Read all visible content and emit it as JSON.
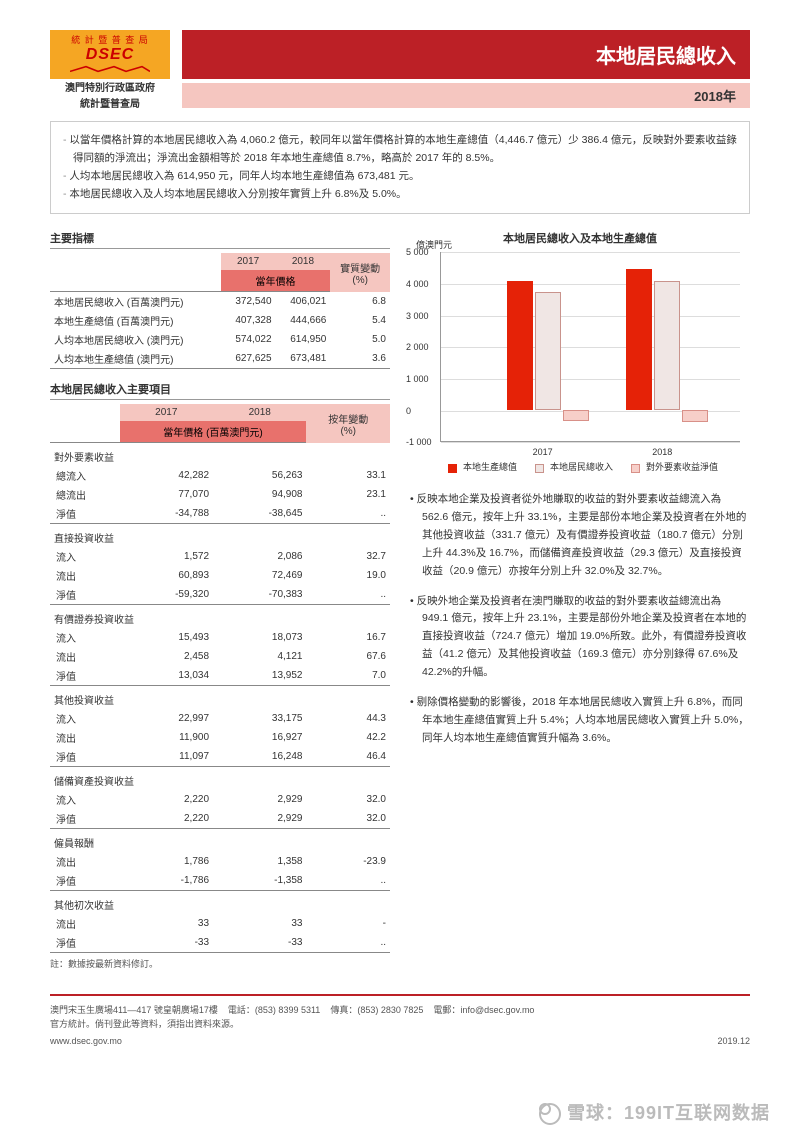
{
  "logo": {
    "top": "統 計 暨 普 查 局",
    "dsec": "DSEC",
    "gov": "澳門特別行政區政府",
    "bureau": "統計暨普查局"
  },
  "title": "本地居民總收入",
  "year": "2018年",
  "summary": [
    "以當年價格計算的本地居民總收入為 4,060.2 億元，較同年以當年價格計算的本地生產總值（4,446.7 億元）少 386.4 億元，反映對外要素收益錄得同額的淨流出；淨流出金額相等於 2018 年本地生產總值 8.7%，略高於 2017 年的 8.5%。",
    "人均本地居民總收入為 614,950 元，同年人均本地生產總值為 673,481 元。",
    "本地居民總收入及人均本地居民總收入分別按年實質上升 6.8%及 5.0%。"
  ],
  "table1": {
    "title": "主要指標",
    "head": {
      "y2017": "2017",
      "y2018": "2018",
      "sub": "當年價格",
      "pct": "實質變動\n(%)"
    },
    "rows": [
      {
        "label": "本地居民總收入 (百萬澳門元)",
        "v17": "372,540",
        "v18": "406,021",
        "pct": "6.8"
      },
      {
        "label": "本地生產總值 (百萬澳門元)",
        "v17": "407,328",
        "v18": "444,666",
        "pct": "5.4"
      },
      {
        "label": "人均本地居民總收入 (澳門元)",
        "v17": "574,022",
        "v18": "614,950",
        "pct": "5.0"
      },
      {
        "label": "人均本地生產總值 (澳門元)",
        "v17": "627,625",
        "v18": "673,481",
        "pct": "3.6"
      }
    ]
  },
  "table2": {
    "title": "本地居民總收入主要項目",
    "head": {
      "y2017": "2017",
      "y2018": "2018",
      "sub": "當年價格 (百萬澳門元)",
      "pct": "按年變動\n(%)"
    },
    "groups": [
      {
        "name": "對外要素收益",
        "rows": [
          {
            "label": "總流入",
            "v17": "42,282",
            "v18": "56,263",
            "pct": "33.1"
          },
          {
            "label": "總流出",
            "v17": "77,070",
            "v18": "94,908",
            "pct": "23.1"
          },
          {
            "label": "淨值",
            "v17": "-34,788",
            "v18": "-38,645",
            "pct": ".."
          }
        ]
      },
      {
        "name": "直接投資收益",
        "rows": [
          {
            "label": "流入",
            "v17": "1,572",
            "v18": "2,086",
            "pct": "32.7"
          },
          {
            "label": "流出",
            "v17": "60,893",
            "v18": "72,469",
            "pct": "19.0"
          },
          {
            "label": "淨值",
            "v17": "-59,320",
            "v18": "-70,383",
            "pct": ".."
          }
        ]
      },
      {
        "name": "有價證券投資收益",
        "rows": [
          {
            "label": "流入",
            "v17": "15,493",
            "v18": "18,073",
            "pct": "16.7"
          },
          {
            "label": "流出",
            "v17": "2,458",
            "v18": "4,121",
            "pct": "67.6"
          },
          {
            "label": "淨值",
            "v17": "13,034",
            "v18": "13,952",
            "pct": "7.0"
          }
        ]
      },
      {
        "name": "其他投資收益",
        "rows": [
          {
            "label": "流入",
            "v17": "22,997",
            "v18": "33,175",
            "pct": "44.3"
          },
          {
            "label": "流出",
            "v17": "11,900",
            "v18": "16,927",
            "pct": "42.2"
          },
          {
            "label": "淨值",
            "v17": "11,097",
            "v18": "16,248",
            "pct": "46.4"
          }
        ]
      },
      {
        "name": "儲備資產投資收益",
        "rows": [
          {
            "label": "流入",
            "v17": "2,220",
            "v18": "2,929",
            "pct": "32.0"
          },
          {
            "label": "淨值",
            "v17": "2,220",
            "v18": "2,929",
            "pct": "32.0"
          }
        ]
      },
      {
        "name": "僱員報酬",
        "rows": [
          {
            "label": "流出",
            "v17": "1,786",
            "v18": "1,358",
            "pct": "-23.9"
          },
          {
            "label": "淨值",
            "v17": "-1,786",
            "v18": "-1,358",
            "pct": ".."
          }
        ]
      },
      {
        "name": "其他初次收益",
        "rows": [
          {
            "label": "流出",
            "v17": "33",
            "v18": "33",
            "pct": "-"
          },
          {
            "label": "淨值",
            "v17": "-33",
            "v18": "-33",
            "pct": ".."
          }
        ]
      }
    ],
    "note": "註：數據按最新資料修訂。"
  },
  "chart": {
    "title": "本地居民總收入及本地生產總值",
    "unit": "億澳門元",
    "ylim": [
      -1000,
      5000
    ],
    "ytick_step": 1000,
    "yticks": [
      "-1 000",
      "0",
      "1 000",
      "2 000",
      "3 000",
      "4 000",
      "5 000"
    ],
    "categories": [
      "2017",
      "2018"
    ],
    "series": [
      {
        "name": "本地生產總值",
        "color": "#e52207",
        "values": [
          4073,
          4447
        ]
      },
      {
        "name": "本地居民總收入",
        "color": "#f0e6e4",
        "border": "#c9938c",
        "values": [
          3725,
          4060
        ]
      },
      {
        "name": "對外要素收益淨值",
        "color": "#f7cfc9",
        "border": "#d89088",
        "values": [
          -348,
          -386
        ]
      }
    ],
    "background": "#ffffff",
    "grid_color": "#dddddd"
  },
  "bullets": [
    "反映本地企業及投資者從外地賺取的收益的對外要素收益總流入為 562.6 億元，按年上升 33.1%，主要是部份本地企業及投資者在外地的其他投資收益（331.7 億元）及有價證券投資收益（180.7 億元）分別上升 44.3%及 16.7%，而儲備資產投資收益（29.3 億元）及直接投資收益（20.9 億元）亦按年分別上升 32.0%及 32.7%。",
    "反映外地企業及投資者在澳門賺取的收益的對外要素收益總流出為 949.1 億元，按年上升 23.1%，主要是部份外地企業及投資者在本地的直接投資收益（724.7 億元）增加 19.0%所致。此外，有價證券投資收益（41.2 億元）及其他投資收益（169.3 億元）亦分別錄得 67.6%及 42.2%的升幅。",
    "剔除價格變動的影響後，2018 年本地居民總收入實質上升 6.8%，而同年本地生產總值實質上升 5.4%；人均本地居民總收入實質上升 5.0%，同年人均本地生產總值實質升幅為 3.6%。"
  ],
  "footer": {
    "addr": "澳門宋玉生廣場411—417 號皇朝廣場17樓",
    "tel_l": "電話：",
    "tel": "(853) 8399 5311",
    "fax_l": "傳真：",
    "fax": "(853) 2830 7825",
    "mail_l": "電郵：",
    "mail": "info@dsec.gov.mo",
    "line2": "官方統計。倘刊登此等資料，須指出資料來源。",
    "site": "www.dsec.gov.mo",
    "date": "2019.12"
  },
  "watermark": "雪球：199IT互联网数据"
}
